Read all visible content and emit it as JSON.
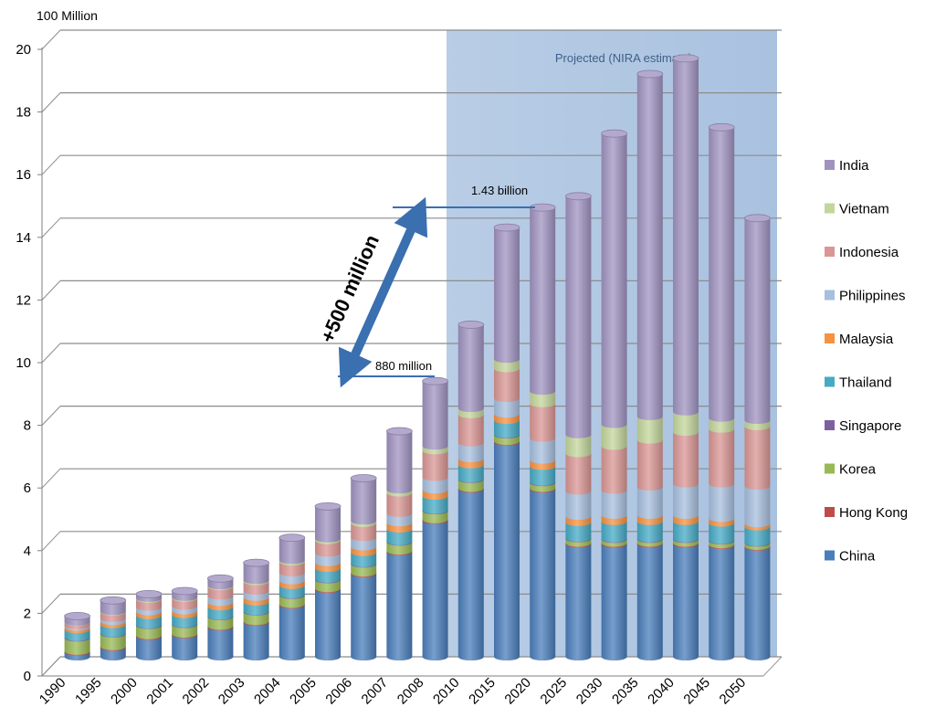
{
  "chart_data": {
    "type": "bar",
    "stacked": true,
    "title": "",
    "ylabel": "100 Million",
    "xlabel": "",
    "ylim": [
      0,
      20
    ],
    "yticks": [
      "0",
      "2",
      "4",
      "6",
      "8",
      "10",
      "12",
      "14",
      "16",
      "18",
      "20"
    ],
    "grid": true,
    "legend_position": "right",
    "categories": [
      "1990",
      "1995",
      "2000",
      "2001",
      "2002",
      "2003",
      "2004",
      "2005",
      "2006",
      "2007",
      "2008",
      "2010",
      "2015",
      "2020",
      "2025",
      "2030",
      "2035",
      "2040",
      "2045",
      "2050"
    ],
    "projection_start": "2010",
    "projection_label": "Projected (NIRA estimate)",
    "series": [
      {
        "name": "China",
        "color": "#4a7ebb",
        "values": [
          0.15,
          0.3,
          0.65,
          0.7,
          0.95,
          1.1,
          1.65,
          2.15,
          2.65,
          3.35,
          4.35,
          5.35,
          6.85,
          5.35,
          3.6,
          3.6,
          3.6,
          3.6,
          3.55,
          3.5
        ]
      },
      {
        "name": "Hong Kong",
        "color": "#be4b48",
        "values": [
          0.03,
          0.03,
          0.03,
          0.03,
          0.03,
          0.03,
          0.03,
          0.03,
          0.03,
          0.03,
          0.03,
          0.03,
          0.03,
          0.03,
          0.03,
          0.03,
          0.03,
          0.03,
          0.03,
          0.03
        ]
      },
      {
        "name": "Korea",
        "color": "#98b954",
        "values": [
          0.42,
          0.4,
          0.32,
          0.3,
          0.3,
          0.3,
          0.28,
          0.28,
          0.28,
          0.28,
          0.28,
          0.28,
          0.2,
          0.18,
          0.14,
          0.12,
          0.12,
          0.12,
          0.12,
          0.1
        ]
      },
      {
        "name": "Singapore",
        "color": "#7d60a0",
        "values": [
          0.02,
          0.02,
          0.02,
          0.02,
          0.02,
          0.02,
          0.02,
          0.02,
          0.02,
          0.02,
          0.02,
          0.02,
          0.02,
          0.02,
          0.02,
          0.02,
          0.02,
          0.02,
          0.02,
          0.02
        ]
      },
      {
        "name": "Thailand",
        "color": "#46aac5",
        "values": [
          0.25,
          0.28,
          0.3,
          0.3,
          0.3,
          0.3,
          0.3,
          0.35,
          0.35,
          0.4,
          0.45,
          0.45,
          0.45,
          0.5,
          0.5,
          0.55,
          0.55,
          0.55,
          0.55,
          0.5
        ]
      },
      {
        "name": "Malaysia",
        "color": "#f69240",
        "values": [
          0.08,
          0.1,
          0.12,
          0.12,
          0.14,
          0.15,
          0.15,
          0.18,
          0.18,
          0.2,
          0.2,
          0.2,
          0.2,
          0.2,
          0.2,
          0.2,
          0.2,
          0.2,
          0.15,
          0.1
        ]
      },
      {
        "name": "Philippines",
        "color": "#a7bfde",
        "values": [
          0.05,
          0.1,
          0.15,
          0.15,
          0.2,
          0.2,
          0.25,
          0.3,
          0.3,
          0.3,
          0.4,
          0.5,
          0.5,
          0.7,
          0.8,
          0.8,
          0.9,
          1.0,
          1.1,
          1.2
        ]
      },
      {
        "name": "Indonesia",
        "color": "#d99694",
        "values": [
          0.1,
          0.2,
          0.25,
          0.25,
          0.3,
          0.3,
          0.35,
          0.4,
          0.45,
          0.65,
          0.85,
          0.9,
          0.95,
          1.1,
          1.2,
          1.4,
          1.5,
          1.65,
          1.75,
          1.9
        ]
      },
      {
        "name": "Vietnam",
        "color": "#c3d69b",
        "values": [
          0.01,
          0.02,
          0.03,
          0.03,
          0.03,
          0.04,
          0.05,
          0.06,
          0.08,
          0.1,
          0.15,
          0.2,
          0.3,
          0.4,
          0.6,
          0.7,
          0.75,
          0.65,
          0.35,
          0.2
        ]
      },
      {
        "name": "India",
        "color": "#a093c0",
        "values": [
          0.19,
          0.35,
          0.13,
          0.2,
          0.23,
          0.56,
          0.72,
          1.03,
          1.36,
          1.87,
          2.07,
          2.67,
          4.2,
          5.86,
          7.61,
          9.28,
          10.93,
          11.28,
          9.28,
          6.45
        ]
      }
    ],
    "annotations": {
      "label_880": "880 million",
      "label_143": "1.43 billion",
      "arrow_label": "+500 million"
    }
  }
}
